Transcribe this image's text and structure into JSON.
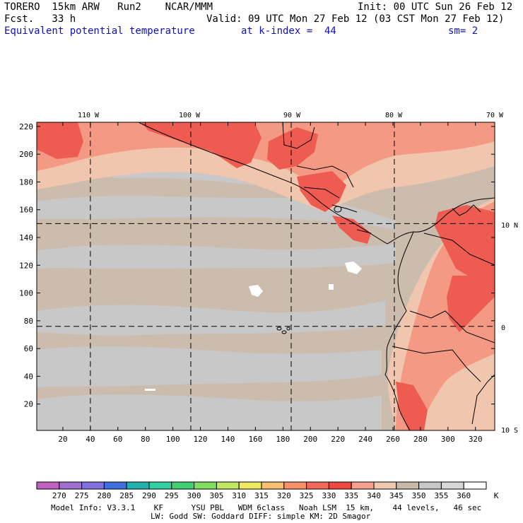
{
  "header": {
    "model": "TORERO  15km ARW   Run2    NCAR/MMM",
    "init": "Init: 00 UTC Sun 26 Feb 12",
    "fcst": "Fcst.   33 h",
    "valid": "Valid: 09 UTC Mon 27 Feb 12 (03 CST Mon 27 Feb 12)",
    "field": "Equivalent potential temperature",
    "level": "at k-index =  44",
    "smooth": "sm= 2"
  },
  "map": {
    "top_lon_labels": [
      "110 W",
      "100 W",
      "90 W",
      "80 W",
      "70 W"
    ],
    "right_lat_labels": [
      "10 N",
      "0",
      "10 S"
    ],
    "y_ticks": [
      "20",
      "40",
      "60",
      "80",
      "100",
      "120",
      "140",
      "160",
      "180",
      "200",
      "220"
    ],
    "x_ticks": [
      "20",
      "40",
      "60",
      "80",
      "100",
      "120",
      "140",
      "160",
      "180",
      "200",
      "220",
      "240",
      "260",
      "280",
      "300",
      "320"
    ],
    "x_range": [
      1,
      334
    ],
    "y_range": [
      1,
      223
    ],
    "meridians_x": [
      40,
      113,
      186,
      261
    ],
    "parallels_y": [
      150,
      76
    ],
    "colors": {
      "gray": "#c8c8c8",
      "tan": "#cbbcae",
      "peach": "#f0c6ae",
      "salmon": "#f49a84",
      "red": "#ee5b50",
      "white": "#ffffff"
    }
  },
  "colorbar": {
    "values": [
      "270",
      "275",
      "280",
      "285",
      "290",
      "295",
      "300",
      "305",
      "310",
      "315",
      "320",
      "325",
      "330",
      "335",
      "340",
      "345",
      "350",
      "355",
      "360"
    ],
    "unit": "K",
    "colors": [
      "#c060c0",
      "#a070d0",
      "#8070e0",
      "#4070e0",
      "#20b0b0",
      "#30d0a0",
      "#40d070",
      "#80e060",
      "#c0e860",
      "#f0e860",
      "#f8c070",
      "#f89068",
      "#f06858",
      "#f04840",
      "#f8a090",
      "#f0c8b0",
      "#c8b8a8",
      "#c8c8c8",
      "#d8d8d8",
      "#ffffff"
    ]
  },
  "footer": {
    "line1": "Model Info: V3.3.1    KF      YSU PBL   WDM 6class   Noah LSM  15 km,    44 levels,   46 sec",
    "line2": "LW: Godd SW: Goddard DIFF: simple KM: 2D Smagor"
  }
}
